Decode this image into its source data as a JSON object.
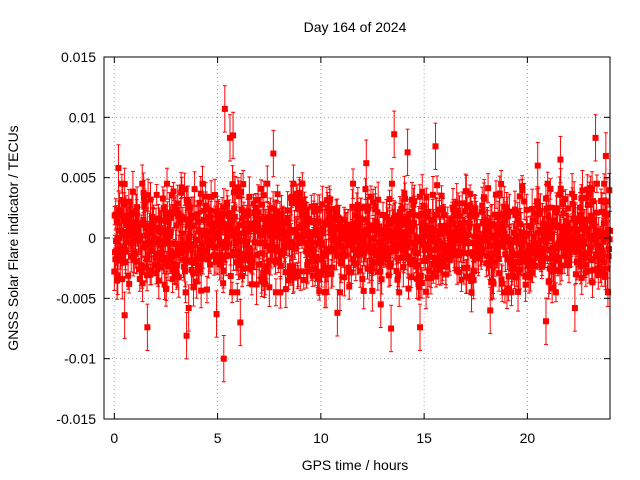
{
  "chart_data": {
    "type": "scatter",
    "title": "Day 164 of 2024",
    "xlabel": "GPS time / hours",
    "ylabel": "GNSS Solar Flare indicator / TECUs",
    "xlim": [
      -0.5,
      24.0
    ],
    "ylim": [
      -0.015,
      0.015
    ],
    "x_ticks": [
      0,
      5,
      10,
      15,
      20
    ],
    "y_ticks": [
      -0.015,
      -0.01,
      -0.005,
      0,
      0.005,
      0.01,
      0.015
    ],
    "x_tick_labels": [
      "0",
      "5",
      "10",
      "15",
      "20"
    ],
    "y_tick_labels": [
      "-0.015",
      "-0.01",
      "-0.005",
      "0",
      "0.005",
      "0.01",
      "0.015"
    ],
    "grid": true,
    "legend": "none",
    "series": [
      {
        "color": "#ff0000",
        "marker": "square",
        "error_bars": true,
        "x_range_hours": [
          0,
          24
        ],
        "typical_spread": [
          -0.0045,
          0.0045
        ],
        "typical_error": 0.0012,
        "points": [
          {
            "x": 5.35,
            "y": 0.0107
          },
          {
            "x": 5.3,
            "y": -0.01
          },
          {
            "x": 5.75,
            "y": 0.0085
          },
          {
            "x": 5.6,
            "y": 0.0083
          },
          {
            "x": 3.5,
            "y": -0.0081
          },
          {
            "x": 1.6,
            "y": -0.0074
          },
          {
            "x": 13.55,
            "y": 0.0086
          },
          {
            "x": 15.55,
            "y": 0.0076
          },
          {
            "x": 13.4,
            "y": -0.0075
          },
          {
            "x": 14.8,
            "y": -0.0074
          },
          {
            "x": 10.8,
            "y": -0.0062
          },
          {
            "x": 20.9,
            "y": -0.0069
          },
          {
            "x": 23.3,
            "y": 0.0083
          },
          {
            "x": 21.6,
            "y": 0.0065
          },
          {
            "x": 23.8,
            "y": 0.0068
          },
          {
            "x": 0.2,
            "y": 0.0058
          },
          {
            "x": 0.5,
            "y": -0.0064
          },
          {
            "x": 3.6,
            "y": -0.0058
          },
          {
            "x": 4.95,
            "y": -0.0063
          },
          {
            "x": 6.1,
            "y": -0.007
          },
          {
            "x": 7.7,
            "y": 0.007
          },
          {
            "x": 12.2,
            "y": 0.0062
          },
          {
            "x": 12.9,
            "y": -0.0055
          },
          {
            "x": 14.2,
            "y": 0.0071
          },
          {
            "x": 18.2,
            "y": -0.006
          },
          {
            "x": 20.5,
            "y": 0.006
          },
          {
            "x": 22.3,
            "y": -0.0058
          }
        ]
      }
    ]
  }
}
